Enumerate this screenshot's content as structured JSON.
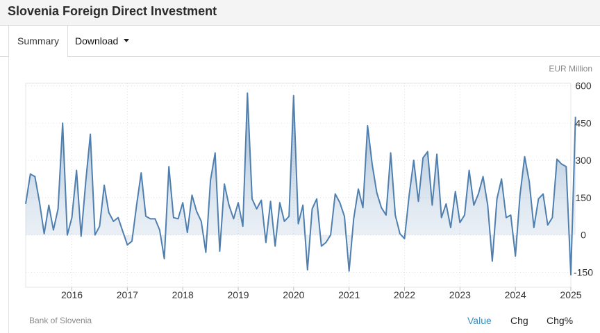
{
  "header": {
    "title": "Slovenia Foreign Direct Investment"
  },
  "tabs": {
    "summary_label": "Summary",
    "download_label": "Download"
  },
  "chart_data": {
    "type": "area",
    "unit_label": "EUR Million",
    "x_start": "2015-03",
    "frequency": "monthly",
    "xlim": [
      "2015-03",
      "2025-01"
    ],
    "ylim": [
      -210,
      610
    ],
    "y_ticks": [
      600,
      450,
      300,
      150,
      0,
      -150
    ],
    "x_ticks": [
      "2016",
      "2017",
      "2018",
      "2019",
      "2020",
      "2021",
      "2022",
      "2023",
      "2024",
      "2025"
    ],
    "grid": true,
    "line_color": "#4f7faf",
    "values": [
      125,
      245,
      235,
      130,
      5,
      120,
      20,
      105,
      450,
      0,
      70,
      260,
      -5,
      215,
      405,
      0,
      35,
      200,
      90,
      55,
      70,
      15,
      -40,
      -25,
      120,
      250,
      75,
      65,
      65,
      20,
      -95,
      275,
      70,
      65,
      130,
      10,
      160,
      95,
      55,
      -70,
      220,
      330,
      -65,
      205,
      120,
      65,
      130,
      35,
      570,
      145,
      105,
      140,
      -30,
      135,
      -45,
      130,
      55,
      75,
      560,
      45,
      120,
      -140,
      105,
      145,
      -45,
      -30,
      0,
      165,
      130,
      75,
      -145,
      65,
      185,
      110,
      440,
      285,
      170,
      110,
      80,
      330,
      80,
      5,
      -15,
      160,
      300,
      135,
      310,
      335,
      120,
      325,
      70,
      125,
      30,
      175,
      50,
      80,
      260,
      120,
      165,
      235,
      120,
      -105,
      145,
      225,
      70,
      80,
      -85,
      160,
      315,
      215,
      30,
      145,
      165,
      40,
      70,
      305,
      285,
      275,
      -160,
      475
    ],
    "footer_source": "Bank of Slovenia"
  },
  "footer": {
    "source": "Bank of Slovenia",
    "opt_value": "Value",
    "opt_chg": "Chg",
    "opt_chgpct": "Chg%"
  }
}
